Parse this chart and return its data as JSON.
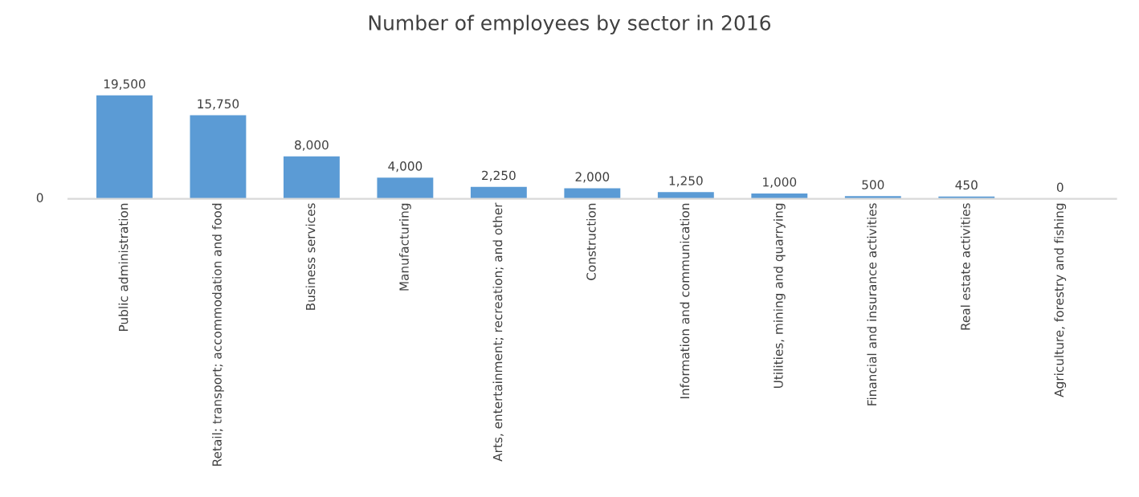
{
  "chart_data": {
    "type": "bar",
    "title": "Number of employees by sector in 2016",
    "categories": [
      "Public administration",
      "Retail; transport; accommodation and food",
      "Business services",
      "Manufacturing",
      "Arts, entertainment; recreation; and other",
      "Construction",
      "Information and communication",
      "Utilities, mining and quarrying",
      "Financial and insurance activities",
      "Real estate activities",
      "Agriculture, forestry and fishing"
    ],
    "values": [
      19500,
      15750,
      8000,
      4000,
      2250,
      2000,
      1250,
      1000,
      500,
      450,
      0
    ],
    "value_labels": [
      "19,500",
      "15,750",
      "8,000",
      "4,000",
      "2,250",
      "2,000",
      "1,250",
      "1,000",
      "500",
      "450",
      "0"
    ],
    "color": "#5b9bd5",
    "annotations": [
      "0"
    ],
    "grid": false,
    "legend": false
  }
}
